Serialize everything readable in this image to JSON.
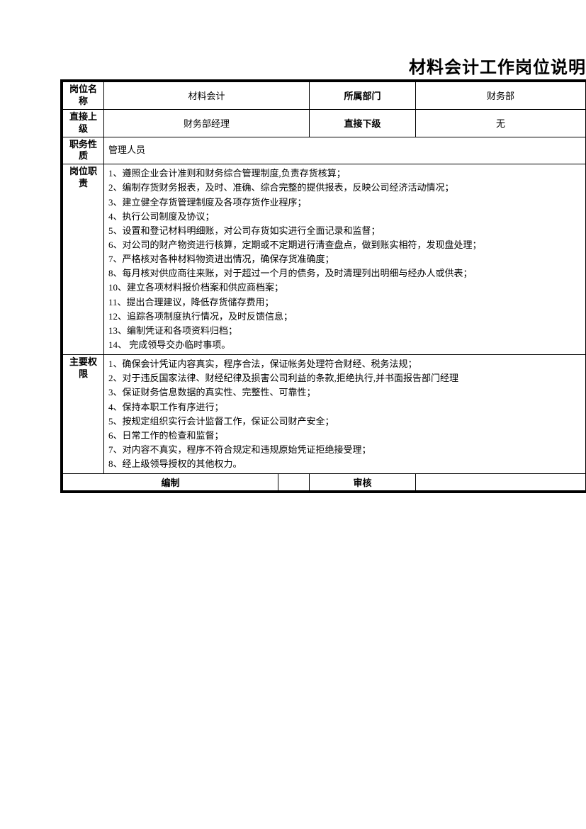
{
  "title": "材料会计工作岗位说明",
  "row1": {
    "label1": "岗位名称",
    "value1": "材料会计",
    "label2": "所属部门",
    "value2": "财务部"
  },
  "row2": {
    "label1": "直接上级",
    "value1": "财务部经理",
    "label2": "直接下级",
    "value2": "无"
  },
  "row3": {
    "label": "职务性质",
    "value": "管理人员"
  },
  "row4": {
    "label": "岗位职责",
    "content": "1、遵照企业会计准则和财务综合管理制度,负责存货核算；\n2、编制存货财务报表，及时、准确、综合完整的提供报表，反映公司经济活动情况；\n3、建立健全存货管理制度及各项存货作业程序；\n4、执行公司制度及协议；\n5、设置和登记材料明细账，对公司存货如实进行全面记录和监督；\n6、对公司的财产物资进行核算，定期或不定期进行清查盘点，做到账实相符，发现盘处理；\n7、严格核对各种材料物资进出情况，确保存货准确度；\n8、每月核对供应商往来账，对于超过一个月的债务，及时清理列出明细与经办人或供表；\n10、建立各项材料报价档案和供应商档案；\n11、提出合理建议，降低存货储存费用；\n12、追踪各项制度执行情况，及时反馈信息；\n13、编制凭证和各项资料归档；\n14、 完成领导交办临时事项。"
  },
  "row5": {
    "label": "主要权限",
    "content": "1、确保会计凭证内容真实，程序合法，保证帐务处理符合财经、税务法规；\n2、对于违反国家法律、财经纪律及损害公司利益的条款,拒绝执行,并书面报告部门经理\n3、保证财务信息数据的真实性、完整性、可靠性；\n4、保持本职工作有序进行；\n5、按规定组织实行会计监督工作，保证公司财产安全；\n6、日常工作的检查和监督；\n7、对内容不真实，程序不符合规定和违规原始凭证拒绝接受理；\n8、经上级领导授权的其他权力。"
  },
  "footer": {
    "label1": "编制",
    "label2": "审核"
  },
  "styles": {
    "font_family": "SimSun",
    "title_fontsize": 24,
    "body_fontsize": 13,
    "border_color": "#000000",
    "background_color": "#ffffff",
    "outer_border_width": 3,
    "inner_border_width": 1
  }
}
